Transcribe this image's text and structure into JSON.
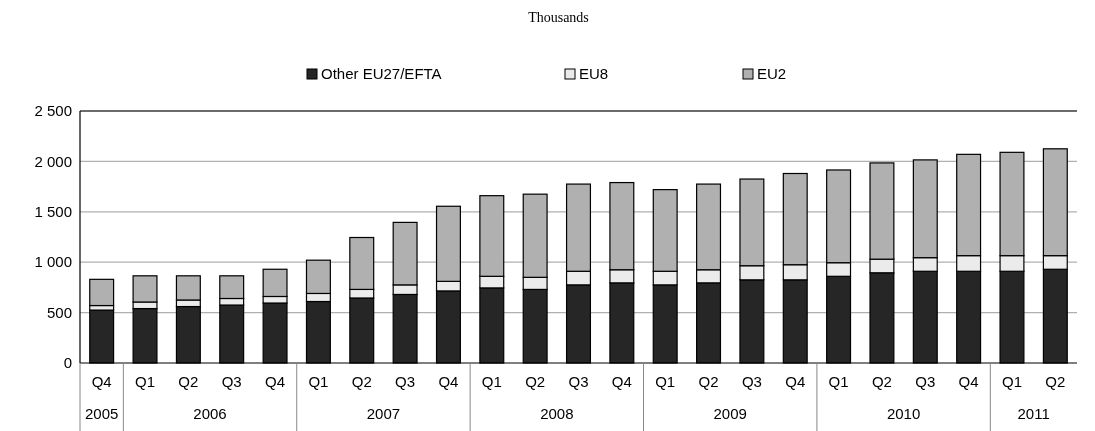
{
  "chart_data": {
    "type": "bar",
    "title": "Thousands",
    "stacked": true,
    "categories": [
      "Q4",
      "Q1",
      "Q2",
      "Q3",
      "Q4",
      "Q1",
      "Q2",
      "Q3",
      "Q4",
      "Q1",
      "Q2",
      "Q3",
      "Q4",
      "Q1",
      "Q2",
      "Q3",
      "Q4",
      "Q1",
      "Q2",
      "Q3",
      "Q4",
      "Q1",
      "Q2"
    ],
    "series": [
      {
        "name": "Other EU27/EFTA",
        "color": "#262626",
        "values": [
          525,
          540,
          560,
          575,
          595,
          610,
          645,
          680,
          715,
          745,
          730,
          775,
          795,
          775,
          795,
          825,
          825,
          860,
          895,
          910,
          910,
          910,
          930
        ]
      },
      {
        "name": "EU8",
        "color": "#ebebeb",
        "values": [
          45,
          65,
          65,
          65,
          65,
          80,
          85,
          95,
          95,
          115,
          120,
          135,
          130,
          135,
          130,
          140,
          150,
          135,
          135,
          135,
          155,
          155,
          135
        ]
      },
      {
        "name": "EU2",
        "color": "#b0b0b0",
        "values": [
          260,
          260,
          240,
          225,
          270,
          330,
          515,
          620,
          745,
          800,
          825,
          865,
          865,
          810,
          850,
          860,
          905,
          920,
          955,
          970,
          1005,
          1025,
          1060
        ]
      }
    ],
    "ylim": [
      0,
      2500
    ],
    "yticks": [
      {
        "value": 0,
        "label": "0"
      },
      {
        "value": 500,
        "label": "500"
      },
      {
        "value": 1000,
        "label": "1 000"
      },
      {
        "value": 1500,
        "label": "1 500"
      },
      {
        "value": 2000,
        "label": "2 000"
      },
      {
        "value": 2500,
        "label": "2 500"
      }
    ],
    "grid": "y",
    "legend": "top",
    "annotations": [
      "2005",
      "2006",
      "2007",
      "2008",
      "2009",
      "2010",
      "2011"
    ]
  }
}
